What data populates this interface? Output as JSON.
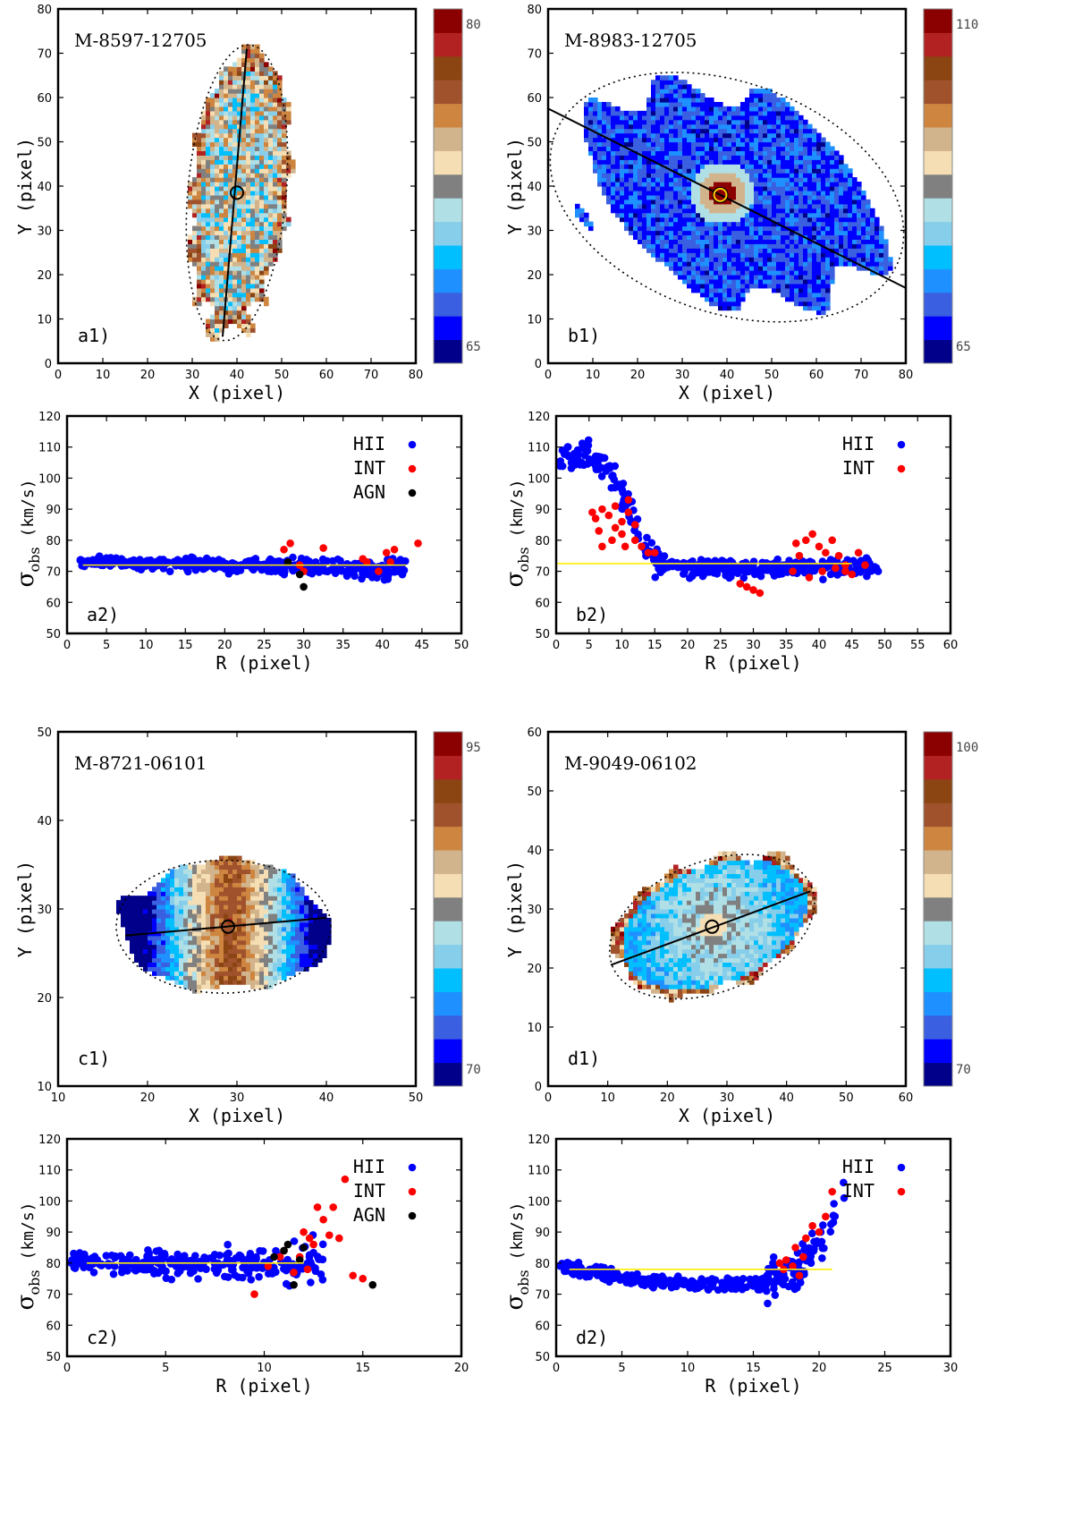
{
  "figure": "Velocity dispersion maps and radial profiles of four MaNGA galaxies",
  "legend_labels": {
    "hii": "HII",
    "int": "INT",
    "agn": "AGN"
  },
  "colors": {
    "hii": "#0000ff",
    "int": "#ff0000",
    "agn": "#000000",
    "ref_line": "#ffee00",
    "palette": [
      "#00008b",
      "#0000ff",
      "#3a5fe0",
      "#1e90ff",
      "#00bfff",
      "#87ceeb",
      "#b0e0e6",
      "#808080",
      "#f5deb3",
      "#d2b48c",
      "#cd853f",
      "#a0522d",
      "#8b4513",
      "#b22222",
      "#8b0000"
    ]
  },
  "chart_data": [
    {
      "id": "a1",
      "type": "heatmap",
      "title": "M-8597-12705",
      "panel_label": "a1)",
      "xlabel": "X   (pixel)",
      "ylabel": "Y   (pixel)",
      "xlim": [
        0,
        80
      ],
      "ylim": [
        0,
        80
      ],
      "xticks": [
        0,
        10,
        20,
        30,
        40,
        50,
        60,
        70,
        80
      ],
      "yticks": [
        0,
        10,
        20,
        30,
        40,
        50,
        60,
        70,
        80
      ],
      "colorbar": {
        "min": 65,
        "max": 80,
        "min_label": "65",
        "max_label": "80"
      },
      "galaxy": {
        "shape": "vertical-elongated",
        "center": [
          40,
          38.5
        ],
        "pa_line": [
          [
            36.8,
            6
          ],
          [
            42.2,
            71
          ]
        ],
        "ellipse_center": [
          40,
          38.5
        ],
        "ellipse_axes": [
          11,
          33.5
        ],
        "ellipse_angle_deg": -5
      }
    },
    {
      "id": "b1",
      "type": "heatmap",
      "title": "M-8983-12705",
      "panel_label": "b1)",
      "xlabel": "X   (pixel)",
      "ylabel": "Y   (pixel)",
      "xlim": [
        0,
        80
      ],
      "ylim": [
        0,
        80
      ],
      "xticks": [
        0,
        10,
        20,
        30,
        40,
        50,
        60,
        70,
        80
      ],
      "yticks": [
        0,
        10,
        20,
        30,
        40,
        50,
        60,
        70,
        80
      ],
      "colorbar": {
        "min": 65,
        "max": 110,
        "min_label": "65",
        "max_label": "110"
      },
      "galaxy": {
        "shape": "blob",
        "center": [
          38.5,
          38
        ],
        "pa_line": [
          [
            0,
            57.5
          ],
          [
            80,
            17
          ]
        ],
        "ellipse_center": [
          40,
          37.5
        ],
        "ellipse_axes": [
          41,
          26
        ],
        "ellipse_angle_deg": -20
      }
    },
    {
      "id": "a2",
      "type": "scatter",
      "panel_label": "a2)",
      "xlabel": "R   (pixel)",
      "ylabel": "(km/s)",
      "ylabel_symbol": "σ",
      "ylabel_sub": "obs",
      "xlim": [
        0,
        50
      ],
      "ylim": [
        50,
        120
      ],
      "xticks": [
        0,
        5,
        10,
        15,
        20,
        25,
        30,
        35,
        40,
        45,
        50
      ],
      "yticks": [
        50,
        60,
        70,
        80,
        90,
        100,
        110,
        120
      ],
      "ref_line": {
        "y": 72,
        "x": [
          2,
          43
        ]
      },
      "series": [
        {
          "name": "HII",
          "color": "#0000ff",
          "profile": "flat",
          "center": 72,
          "spread": 5,
          "xrange": [
            1.5,
            43
          ],
          "count": 420
        },
        {
          "name": "INT",
          "color": "#ff0000",
          "points": [
            [
              27.5,
              77
            ],
            [
              28.3,
              79
            ],
            [
              30,
              70
            ],
            [
              32.5,
              77.5
            ],
            [
              37.5,
              74
            ],
            [
              38,
              73
            ],
            [
              39.5,
              70
            ],
            [
              40.5,
              76
            ],
            [
              41,
              73
            ],
            [
              41.5,
              77
            ],
            [
              44.5,
              79
            ],
            [
              29.5,
              72
            ]
          ]
        },
        {
          "name": "AGN",
          "color": "#000000",
          "points": [
            [
              28,
              73
            ],
            [
              29.5,
              69
            ],
            [
              30,
              65
            ]
          ]
        }
      ]
    },
    {
      "id": "b2",
      "type": "scatter",
      "panel_label": "b2)",
      "xlabel": "R   (pixel)",
      "ylabel": "(km/s)",
      "ylabel_symbol": "σ",
      "ylabel_sub": "obs",
      "xlim": [
        0,
        60
      ],
      "ylim": [
        50,
        120
      ],
      "xticks": [
        0,
        5,
        10,
        15,
        20,
        25,
        30,
        35,
        40,
        45,
        50,
        55,
        60
      ],
      "yticks": [
        50,
        60,
        70,
        80,
        90,
        100,
        110,
        120
      ],
      "ref_line": {
        "y": 72.5,
        "x": [
          0,
          45
        ]
      },
      "series": [
        {
          "name": "HII",
          "color": "#0000ff",
          "profile": "drop",
          "peak": 108,
          "floor": 71,
          "knee": 11,
          "spread": 6,
          "xrange": [
            0.5,
            49
          ],
          "count": 380
        },
        {
          "name": "INT",
          "color": "#ff0000",
          "points": [
            [
              6,
              87
            ],
            [
              7,
              90
            ],
            [
              8,
              88
            ],
            [
              9,
              91
            ],
            [
              10,
              86
            ],
            [
              11,
              89
            ],
            [
              6.5,
              83
            ],
            [
              8.5,
              80
            ],
            [
              10,
              82
            ],
            [
              12,
              80
            ],
            [
              13,
              78
            ],
            [
              14,
              76
            ],
            [
              7,
              78
            ],
            [
              9,
              84
            ],
            [
              11,
              93
            ],
            [
              12,
              85
            ],
            [
              5.5,
              89
            ],
            [
              10.5,
              78
            ],
            [
              15,
              76
            ],
            [
              28,
              66
            ],
            [
              29,
              65
            ],
            [
              30,
              64
            ],
            [
              31,
              63
            ],
            [
              36,
              70
            ],
            [
              37,
              75
            ],
            [
              38,
              80
            ],
            [
              39,
              82
            ],
            [
              40,
              78
            ],
            [
              41,
              76
            ],
            [
              42,
              80
            ],
            [
              43,
              75
            ],
            [
              44,
              72
            ],
            [
              45,
              69
            ],
            [
              46,
              76
            ],
            [
              38.5,
              68
            ],
            [
              40.5,
              70
            ],
            [
              42.5,
              71
            ],
            [
              36.5,
              79
            ],
            [
              44,
              70
            ],
            [
              47,
              72
            ]
          ]
        }
      ]
    },
    {
      "id": "c1",
      "type": "heatmap",
      "title": "M-8721-06101",
      "panel_label": "c1)",
      "xlabel": "X   (pixel)",
      "ylabel": "Y   (pixel)",
      "xlim": [
        10,
        50
      ],
      "ylim": [
        10,
        50
      ],
      "xticks": [
        10,
        20,
        30,
        40,
        50
      ],
      "yticks": [
        10,
        20,
        30,
        40,
        50
      ],
      "colorbar": {
        "min": 70,
        "max": 95,
        "min_label": "70",
        "max_label": "95"
      },
      "galaxy": {
        "shape": "oval",
        "center": [
          29,
          28
        ],
        "pa_line": [
          [
            17.5,
            27
          ],
          [
            40,
            29
          ]
        ],
        "ellipse_center": [
          28.5,
          28
        ],
        "ellipse_axes": [
          12,
          7.5
        ],
        "ellipse_angle_deg": 0
      }
    },
    {
      "id": "d1",
      "type": "heatmap",
      "title": "M-9049-06102",
      "panel_label": "d1)",
      "xlabel": "X   (pixel)",
      "ylabel": "Y   (pixel)",
      "xlim": [
        0,
        60
      ],
      "ylim": [
        0,
        60
      ],
      "xticks": [
        0,
        10,
        20,
        30,
        40,
        50,
        60
      ],
      "yticks": [
        0,
        10,
        20,
        30,
        40,
        50,
        60
      ],
      "colorbar": {
        "min": 70,
        "max": 100,
        "min_label": "70",
        "max_label": "100"
      },
      "galaxy": {
        "shape": "tilted-oval",
        "center": [
          27.5,
          27
        ],
        "pa_line": [
          [
            10.5,
            20.5
          ],
          [
            44,
            33
          ]
        ],
        "ellipse_center": [
          27.5,
          27
        ],
        "ellipse_axes": [
          18,
          11
        ],
        "ellipse_angle_deg": 22
      }
    },
    {
      "id": "c2",
      "type": "scatter",
      "panel_label": "c2)",
      "xlabel": "R   (pixel)",
      "ylabel": "(km/s)",
      "ylabel_symbol": "σ",
      "ylabel_sub": "obs",
      "xlim": [
        0,
        20
      ],
      "ylim": [
        50,
        120
      ],
      "xticks": [
        0,
        5,
        10,
        15,
        20
      ],
      "yticks": [
        50,
        60,
        70,
        80,
        90,
        100,
        110,
        120
      ],
      "ref_line": {
        "y": 80,
        "x": [
          1,
          12
        ]
      },
      "series": [
        {
          "name": "HII",
          "color": "#0000ff",
          "profile": "funnel",
          "center": 80,
          "spread": 7,
          "xrange": [
            0.2,
            13
          ],
          "count": 260
        },
        {
          "name": "INT",
          "color": "#ff0000",
          "points": [
            [
              9.5,
              70
            ],
            [
              10.2,
              79
            ],
            [
              10.8,
              82
            ],
            [
              11,
              84
            ],
            [
              11.5,
              77
            ],
            [
              11.8,
              82
            ],
            [
              12,
              90
            ],
            [
              12.2,
              78
            ],
            [
              12.5,
              86
            ],
            [
              12.7,
              98
            ],
            [
              13,
              94
            ],
            [
              13.3,
              89
            ],
            [
              13.5,
              98
            ],
            [
              13.8,
              88
            ],
            [
              14.1,
              107
            ],
            [
              14.5,
              76
            ],
            [
              15,
              75
            ],
            [
              12.3,
              88
            ]
          ]
        },
        {
          "name": "AGN",
          "color": "#000000",
          "points": [
            [
              10.5,
              82
            ],
            [
              11,
              84
            ],
            [
              11.2,
              86
            ],
            [
              11.5,
              73
            ],
            [
              11.8,
              81
            ],
            [
              12,
              85
            ],
            [
              15.5,
              73
            ]
          ]
        }
      ]
    },
    {
      "id": "d2",
      "type": "scatter",
      "panel_label": "d2)",
      "xlabel": "R   (pixel)",
      "ylabel": "(km/s)",
      "ylabel_symbol": "σ",
      "ylabel_sub": "obs",
      "xlim": [
        0,
        30
      ],
      "ylim": [
        50,
        120
      ],
      "xticks": [
        0,
        5,
        10,
        15,
        20,
        25,
        30
      ],
      "yticks": [
        50,
        60,
        70,
        80,
        90,
        100,
        110,
        120
      ],
      "ref_line": {
        "y": 78,
        "x": [
          1,
          21
        ]
      },
      "series": [
        {
          "name": "HII",
          "color": "#0000ff",
          "profile": "bowl",
          "center": 79,
          "spread": 5,
          "xrange": [
            0.3,
            22
          ],
          "count": 330
        },
        {
          "name": "INT",
          "color": "#ff0000",
          "points": [
            [
              17,
              80
            ],
            [
              17.5,
              81
            ],
            [
              18,
              79
            ],
            [
              18.5,
              76
            ],
            [
              18.8,
              82
            ],
            [
              19,
              88
            ],
            [
              19.5,
              92
            ],
            [
              20,
              90
            ],
            [
              20.5,
              95
            ],
            [
              21,
              103
            ],
            [
              17.3,
              78
            ],
            [
              18.2,
              85
            ]
          ]
        }
      ]
    }
  ]
}
